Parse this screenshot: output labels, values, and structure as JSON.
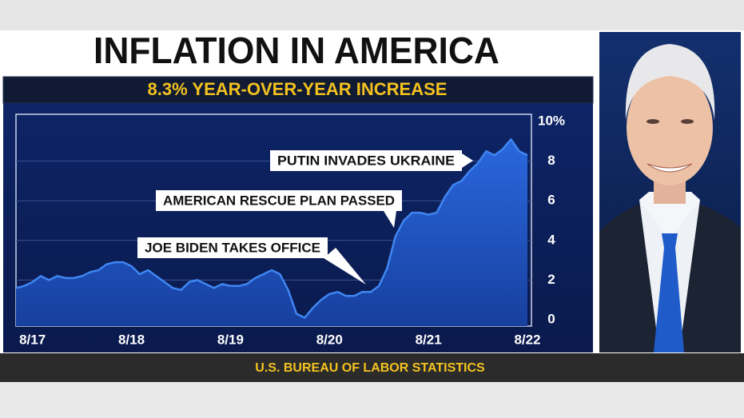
{
  "chart_data": {
    "type": "area",
    "title": "INFLATION IN AMERICA",
    "subtitle": "8.3% YEAR-OVER-YEAR INCREASE",
    "source": "U.S. BUREAU OF LABOR STATISTICS",
    "categories": [
      null,
      null,
      "8/17",
      null,
      null,
      null,
      null,
      null,
      null,
      null,
      null,
      null,
      null,
      null,
      "8/18",
      null,
      null,
      null,
      null,
      null,
      null,
      null,
      null,
      null,
      null,
      null,
      "8/19",
      null,
      null,
      null,
      null,
      null,
      null,
      null,
      null,
      null,
      null,
      null,
      "8/20",
      null,
      null,
      null,
      null,
      null,
      null,
      null,
      null,
      null,
      null,
      null,
      "8/21",
      null,
      null,
      null,
      null,
      null,
      null,
      null,
      null,
      null,
      null,
      null,
      "8/22"
    ],
    "values": [
      1.6,
      1.7,
      1.9,
      2.2,
      2.0,
      2.2,
      2.1,
      2.1,
      2.2,
      2.4,
      2.5,
      2.8,
      2.9,
      2.9,
      2.7,
      2.3,
      2.5,
      2.2,
      1.9,
      1.6,
      1.5,
      1.9,
      2.0,
      1.8,
      1.6,
      1.8,
      1.7,
      1.7,
      1.8,
      2.1,
      2.3,
      2.5,
      2.3,
      1.5,
      0.3,
      0.1,
      0.6,
      1.0,
      1.3,
      1.4,
      1.2,
      1.2,
      1.4,
      1.4,
      1.7,
      2.6,
      4.2,
      5.0,
      5.4,
      5.4,
      5.3,
      5.4,
      6.2,
      6.8,
      7.0,
      7.5,
      7.9,
      8.5,
      8.3,
      8.6,
      9.1,
      8.5,
      8.3
    ],
    "color": "#3f86f2",
    "ylim": [
      0,
      10
    ],
    "yticks": [
      0,
      2,
      4,
      6,
      8,
      {
        "value": 10,
        "label": "10%"
      }
    ],
    "grid": true,
    "annotations": [
      "PUTIN INVADES UKRAINE",
      "AMERICAN RESCUE PLAN PASSED",
      "JOE BIDEN TAKES OFFICE"
    ]
  }
}
